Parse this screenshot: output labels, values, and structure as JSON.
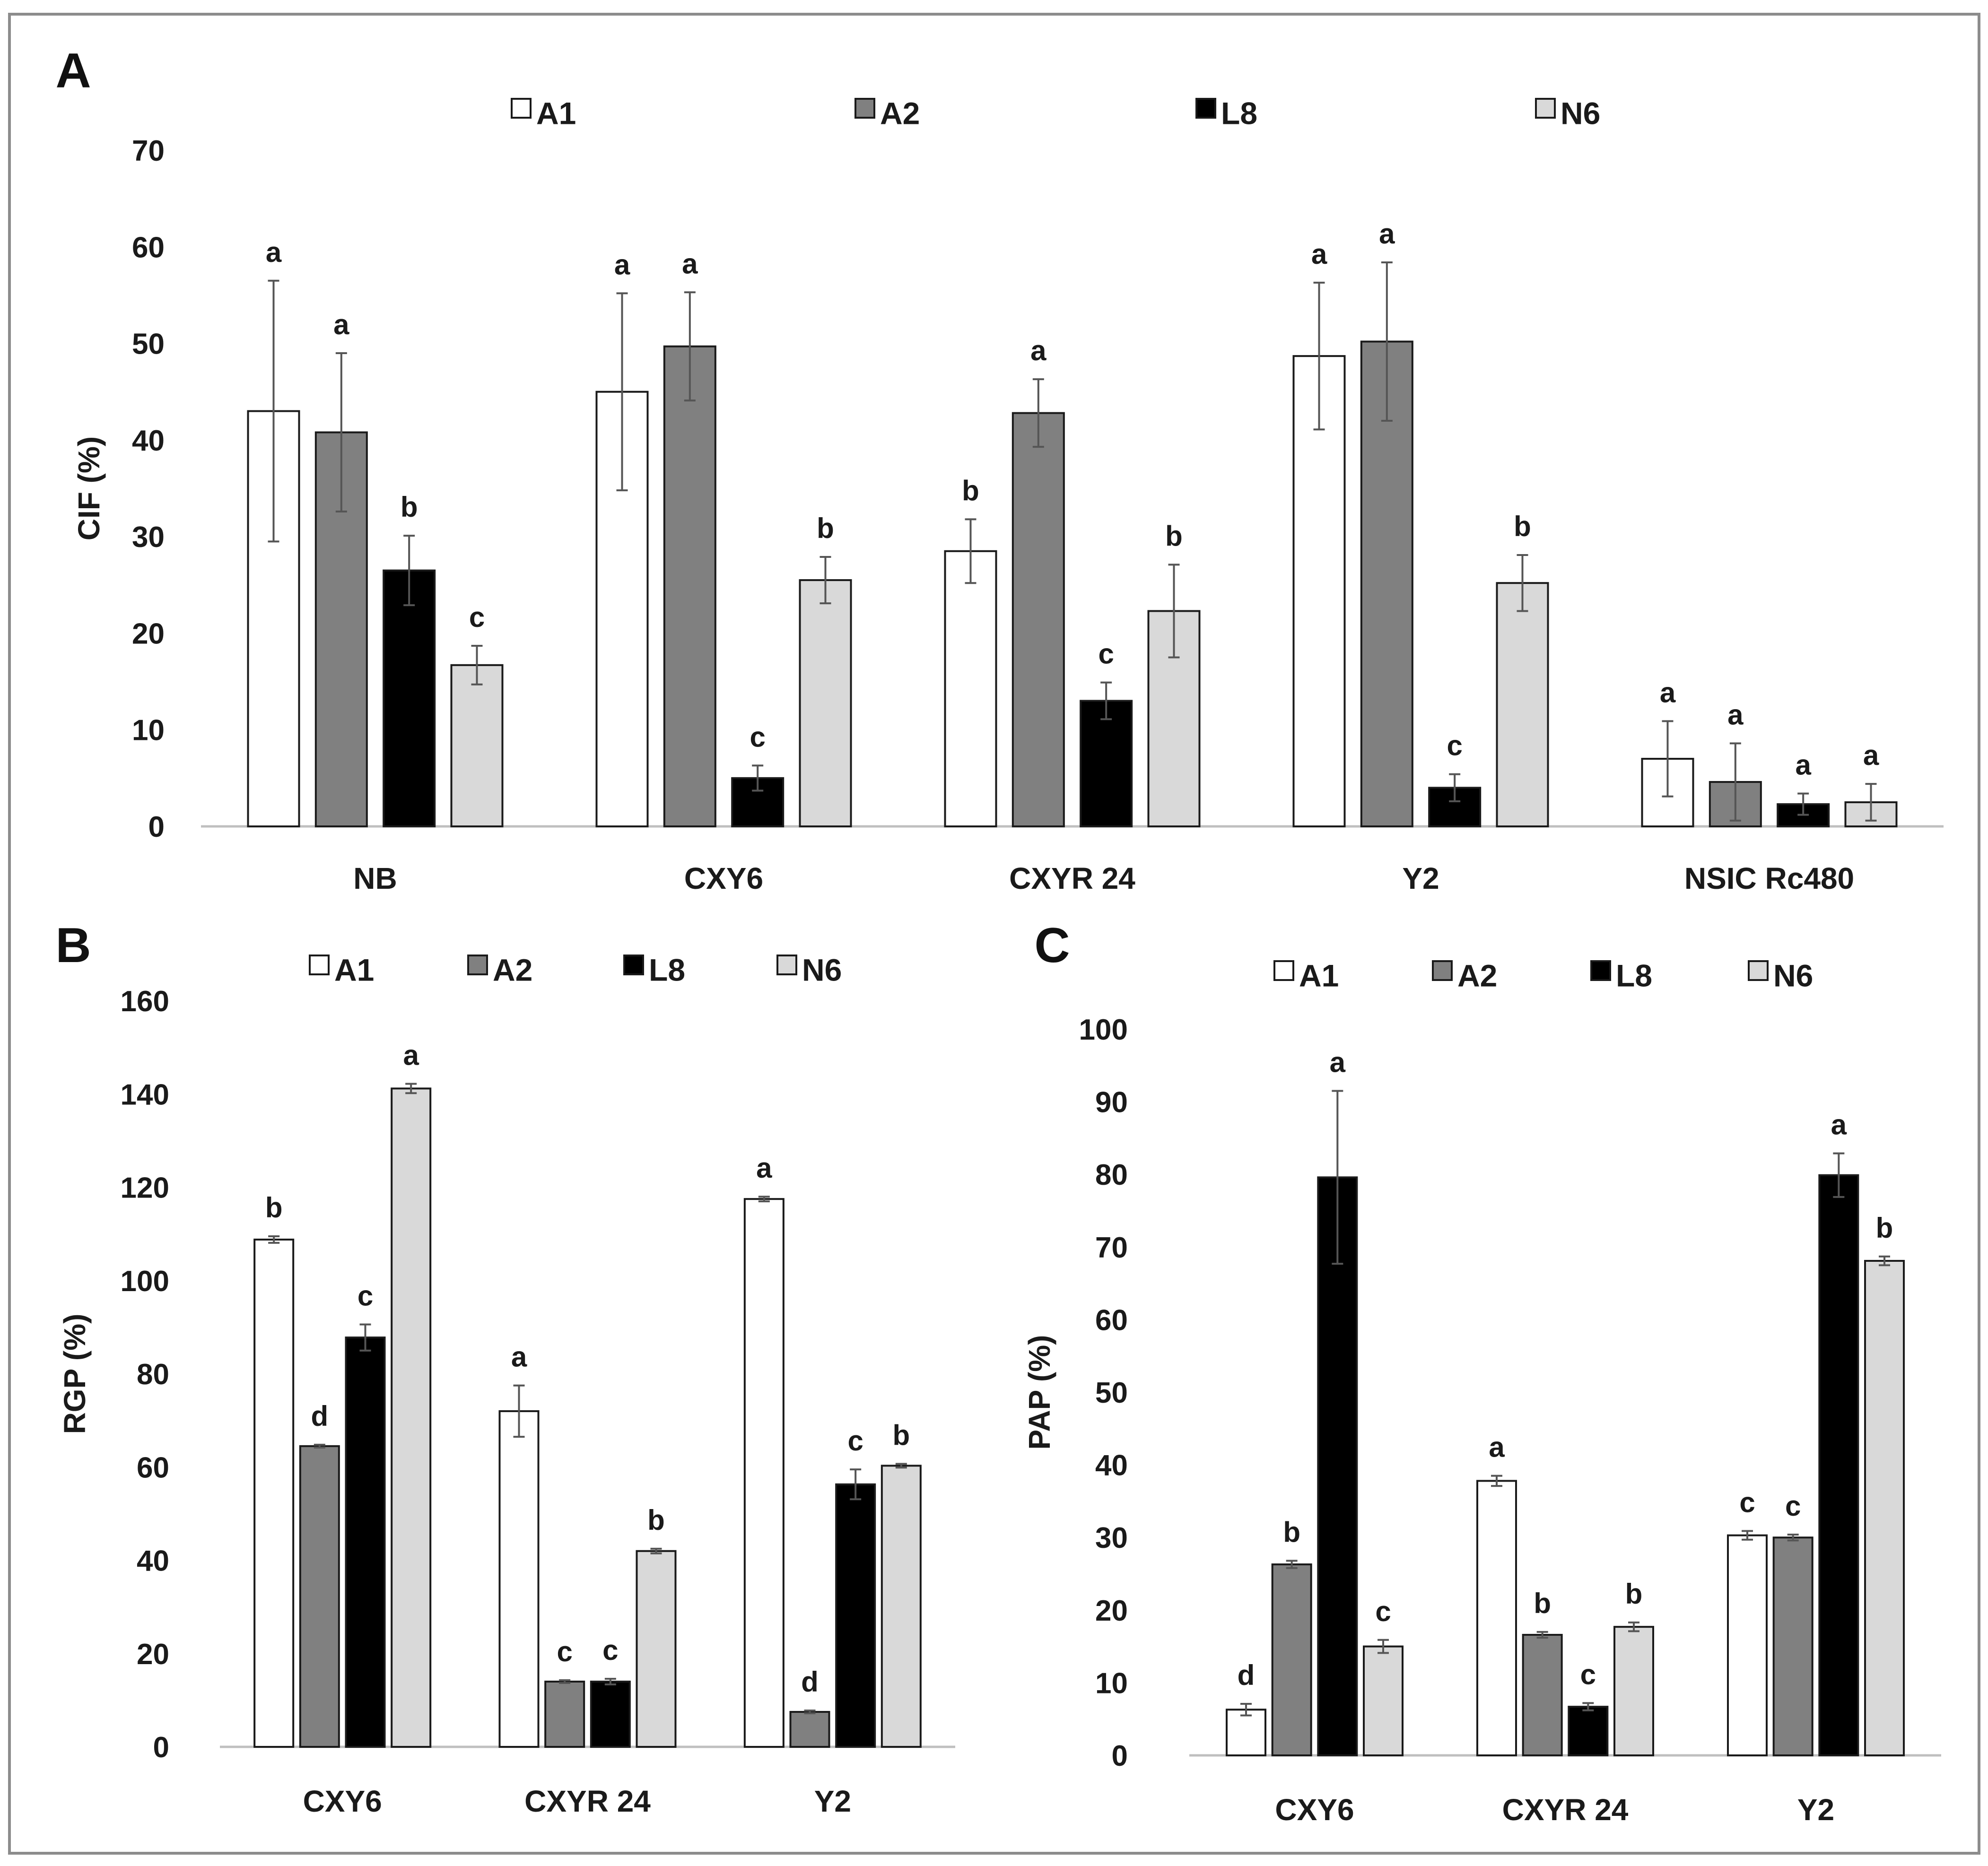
{
  "colors": {
    "A1": "#ffffff",
    "A2": "#808080",
    "L8": "#000000",
    "N6": "#d9d9d9",
    "outline": "#1a1a1a",
    "error": "#555555",
    "axis": "#bfbfbf",
    "border": "#8c8c8c"
  },
  "chart_data": [
    {
      "panel_label": "A",
      "type": "bar",
      "title": "",
      "xlabel": "",
      "ylabel": "CIF (%)",
      "ylim": [
        0,
        70
      ],
      "yticks": [
        "0",
        "10",
        "20",
        "30",
        "40",
        "50",
        "60",
        "70"
      ],
      "legend_position": "top",
      "categories": [
        "NB",
        "CXY6",
        "CXYR 24",
        "Y2",
        "NSIC Rc480"
      ],
      "series": [
        {
          "name": "A1",
          "values": [
            43.0,
            45.0,
            28.5,
            48.7,
            7.0
          ],
          "errors": [
            13.5,
            10.2,
            3.3,
            7.6,
            3.9
          ],
          "labels": [
            "a",
            "a",
            "b",
            "a",
            "a"
          ]
        },
        {
          "name": "A2",
          "values": [
            40.8,
            49.7,
            42.8,
            50.2,
            4.6
          ],
          "errors": [
            8.2,
            5.6,
            3.5,
            8.2,
            4.0
          ],
          "labels": [
            "a",
            "a",
            "a",
            "a",
            "a"
          ]
        },
        {
          "name": "L8",
          "values": [
            26.5,
            5.0,
            13.0,
            4.0,
            2.3
          ],
          "errors": [
            3.6,
            1.3,
            1.9,
            1.4,
            1.1
          ],
          "labels": [
            "b",
            "c",
            "c",
            "c",
            "a"
          ]
        },
        {
          "name": "N6",
          "values": [
            16.7,
            25.5,
            22.3,
            25.2,
            2.5
          ],
          "errors": [
            2.0,
            2.4,
            4.8,
            2.9,
            1.9
          ],
          "labels": [
            "c",
            "b",
            "b",
            "b",
            "a"
          ]
        }
      ]
    },
    {
      "panel_label": "B",
      "type": "bar",
      "title": "",
      "xlabel": "",
      "ylabel": "RGP (%)",
      "ylim": [
        0,
        160
      ],
      "yticks": [
        "0",
        "20",
        "40",
        "60",
        "80",
        "100",
        "120",
        "140",
        "160"
      ],
      "legend_position": "top",
      "categories": [
        "CXY6",
        "CXYR 24",
        "Y2"
      ],
      "series": [
        {
          "name": "A1",
          "values": [
            108.8,
            72.0,
            117.5
          ],
          "errors": [
            0.7,
            5.5,
            0.5
          ],
          "labels": [
            "b",
            "a",
            "a"
          ]
        },
        {
          "name": "A2",
          "values": [
            64.5,
            14.0,
            7.5
          ],
          "errors": [
            0.3,
            0.3,
            0.3
          ],
          "labels": [
            "d",
            "c",
            "d"
          ]
        },
        {
          "name": "L8",
          "values": [
            87.8,
            14.0,
            56.3
          ],
          "errors": [
            2.8,
            0.6,
            3.2
          ],
          "labels": [
            "c",
            "c",
            "c"
          ]
        },
        {
          "name": "N6",
          "values": [
            141.2,
            42.0,
            60.3
          ],
          "errors": [
            1.0,
            0.5,
            0.4
          ],
          "labels": [
            "a",
            "b",
            "b"
          ]
        }
      ]
    },
    {
      "panel_label": "C",
      "type": "bar",
      "title": "",
      "xlabel": "",
      "ylabel": "PAP (%)",
      "ylim": [
        0,
        100
      ],
      "yticks": [
        "0",
        "10",
        "20",
        "30",
        "40",
        "50",
        "60",
        "70",
        "80",
        "90",
        "100"
      ],
      "legend_position": "top",
      "categories": [
        "CXY6",
        "CXYR 24",
        "Y2"
      ],
      "series": [
        {
          "name": "A1",
          "values": [
            6.3,
            37.8,
            30.3
          ],
          "errors": [
            0.8,
            0.7,
            0.6
          ],
          "labels": [
            "d",
            "a",
            "c"
          ]
        },
        {
          "name": "A2",
          "values": [
            26.3,
            16.6,
            30.0
          ],
          "errors": [
            0.5,
            0.4,
            0.4
          ],
          "labels": [
            "b",
            "b",
            "c"
          ]
        },
        {
          "name": "L8",
          "values": [
            79.6,
            6.7,
            79.9
          ],
          "errors": [
            11.9,
            0.5,
            3.0
          ],
          "labels": [
            "a",
            "c",
            "a"
          ]
        },
        {
          "name": "N6",
          "values": [
            15.0,
            17.7,
            68.1
          ],
          "errors": [
            0.9,
            0.6,
            0.6
          ],
          "labels": [
            "c",
            "b",
            "b"
          ]
        }
      ]
    }
  ]
}
